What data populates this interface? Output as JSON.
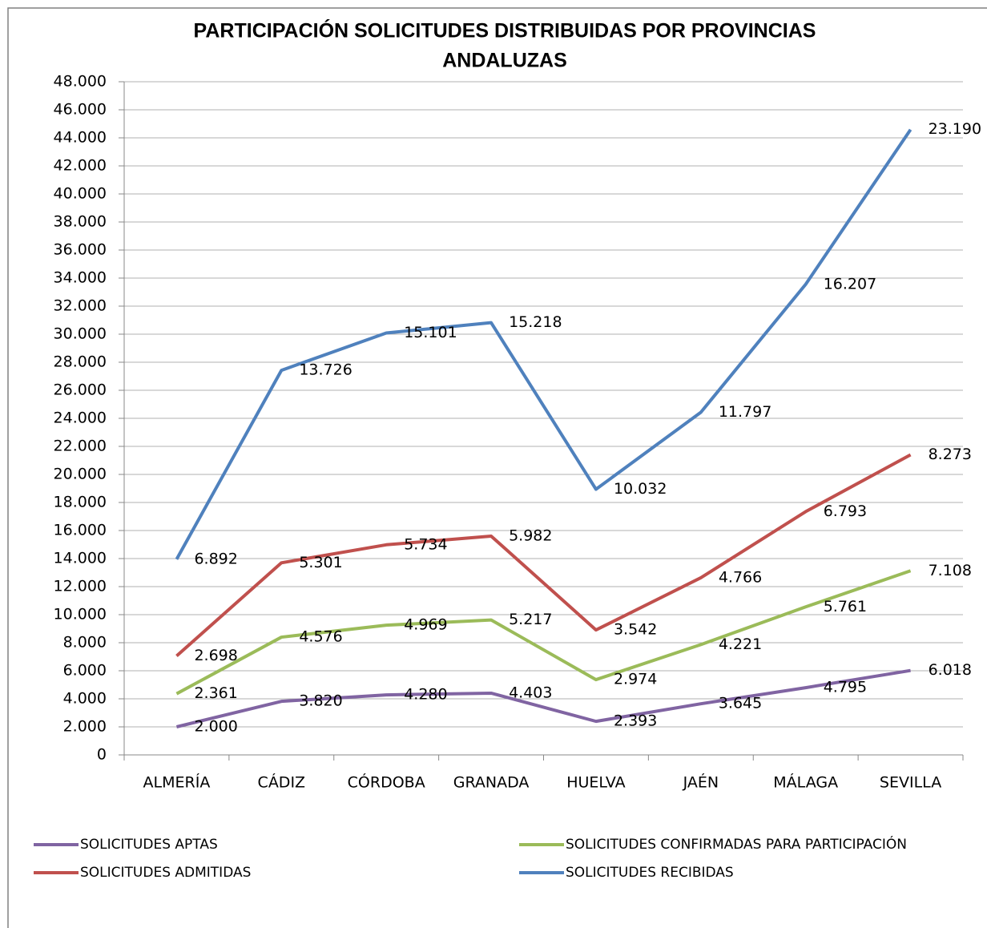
{
  "chart_data": {
    "type": "stacked-line",
    "title": [
      "PARTICIPACIÓN SOLICITUDES DISTRIBUIDAS POR PROVINCIAS",
      "ANDALUZAS"
    ],
    "categories": [
      "ALMERÍA",
      "CÁDIZ",
      "CÓRDOBA",
      "GRANADA",
      "HUELVA",
      "JAÉN",
      "MÁLAGA",
      "SEVILLA"
    ],
    "series": [
      {
        "name": "SOLICITUDES APTAS",
        "color": "#8064a2",
        "values": [
          2000,
          3820,
          4280,
          4403,
          2393,
          3645,
          4795,
          6018
        ],
        "value_labels": [
          "2.000",
          "3.820",
          "4.280",
          "4.403",
          "2.393",
          "3.645",
          "4.795",
          "6.018"
        ]
      },
      {
        "name": "SOLICITUDES CONFIRMADAS PARA PARTICIPACIÓN",
        "color": "#9bbb59",
        "values": [
          2361,
          4576,
          4969,
          5217,
          2974,
          4221,
          5761,
          7108
        ],
        "value_labels": [
          "2.361",
          "4.576",
          "4.969",
          "5.217",
          "2.974",
          "4.221",
          "5.761",
          "7.108"
        ]
      },
      {
        "name": "SOLICITUDES ADMITIDAS",
        "color": "#c0504d",
        "values": [
          2698,
          5301,
          5734,
          5982,
          3542,
          4766,
          6793,
          8273
        ],
        "value_labels": [
          "2.698",
          "5.301",
          "5.734",
          "5.982",
          "3.542",
          "4.766",
          "6.793",
          "8.273"
        ]
      },
      {
        "name": "SOLICITUDES RECIBIDAS",
        "color": "#4f81bd",
        "values": [
          6892,
          13726,
          15101,
          15218,
          10032,
          11797,
          16207,
          23190
        ],
        "value_labels": [
          "6.892",
          "13.726",
          "15.101",
          "15.218",
          "10.032",
          "11.797",
          "16.207",
          "23.190"
        ]
      }
    ],
    "ylim": [
      0,
      48000
    ],
    "yticks": [
      0,
      {
        "value": 2000,
        "label": "2.000"
      },
      {
        "value": 4000,
        "label": "4.000"
      },
      {
        "value": 6000,
        "label": "6.000"
      },
      {
        "value": 8000,
        "label": "8.000"
      },
      {
        "value": 10000,
        "label": "10.000"
      },
      {
        "value": 12000,
        "label": "12.000"
      },
      {
        "value": 14000,
        "label": "14.000"
      },
      {
        "value": 16000,
        "label": "16.000"
      },
      {
        "value": 18000,
        "label": "18.000"
      },
      {
        "value": 20000,
        "label": "20.000"
      },
      {
        "value": 22000,
        "label": "22.000"
      },
      {
        "value": 24000,
        "label": "24.000"
      },
      {
        "value": 26000,
        "label": "26.000"
      },
      {
        "value": 28000,
        "label": "28.000"
      },
      {
        "value": 30000,
        "label": "30.000"
      },
      {
        "value": 32000,
        "label": "32.000"
      },
      {
        "value": 34000,
        "label": "34.000"
      },
      {
        "value": 36000,
        "label": "36.000"
      },
      {
        "value": 38000,
        "label": "38.000"
      },
      {
        "value": 40000,
        "label": "40.000"
      },
      {
        "value": 42000,
        "label": "42.000"
      },
      {
        "value": 44000,
        "label": "44.000"
      },
      {
        "value": 46000,
        "label": "46.000"
      },
      {
        "value": 48000,
        "label": "48.000"
      }
    ],
    "grid": true
  }
}
